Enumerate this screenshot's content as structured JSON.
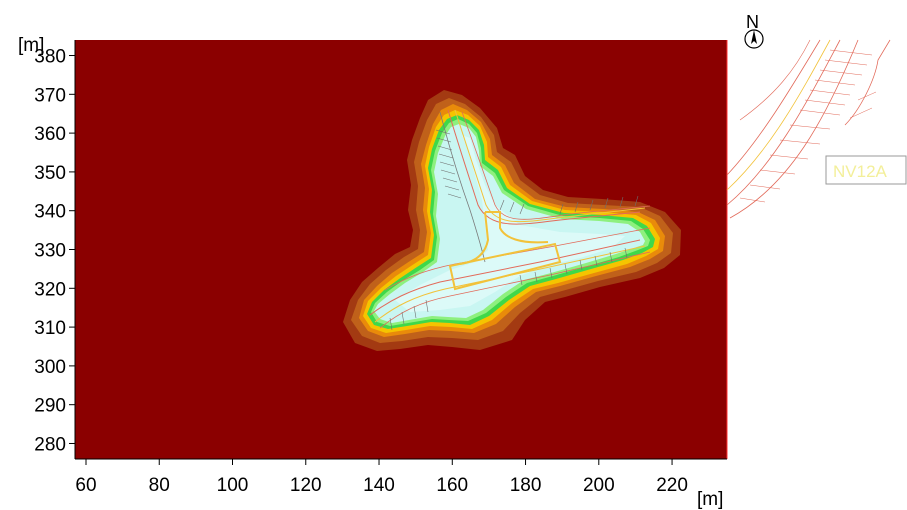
{
  "map": {
    "unit_y": "[m]",
    "unit_x": "[m]",
    "north_label": "N",
    "road_label": "NV12A",
    "x_ticks": [
      60,
      80,
      100,
      120,
      140,
      160,
      180,
      200,
      220
    ],
    "y_ticks": [
      380,
      370,
      360,
      350,
      340,
      330,
      320,
      310,
      300,
      290,
      280
    ],
    "x_range": [
      57,
      235
    ],
    "y_range": [
      276,
      384
    ],
    "colors": {
      "background": "#8b0000",
      "outer_band_1": "#a33a12",
      "outer_band_2": "#c0611a",
      "band_orange": "#e98b0a",
      "band_yellow": "#f5c400",
      "band_green": "#3fd84a",
      "band_lightgreen": "#8ef07e",
      "inner_cyan": "#c9f6f2",
      "inner_light": "#dcfaf8",
      "road_line": "#e26a5a",
      "outline_yellow": "#f2c23a",
      "hatch": "#6d6d6d"
    }
  }
}
